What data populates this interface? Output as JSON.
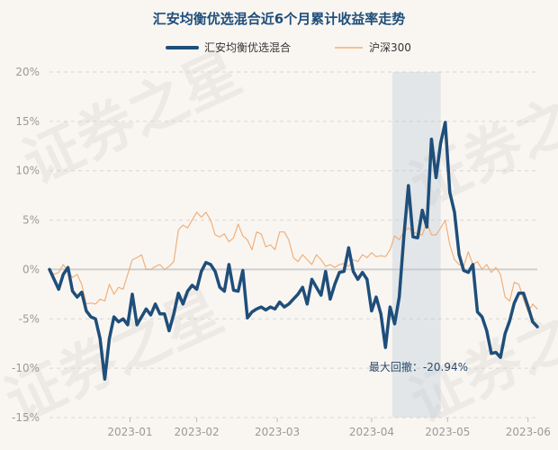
{
  "chart_data": {
    "type": "line",
    "title": "汇安均衡优选混合近6个月累计收益率走势",
    "xlabel": "",
    "ylabel": "",
    "ylim": [
      -15,
      20
    ],
    "yticks": [
      "20%",
      "15%",
      "10%",
      "5%",
      "0%",
      "-5%",
      "-10%",
      "-15%"
    ],
    "ytick_values": [
      20,
      15,
      10,
      5,
      0,
      -5,
      -10,
      -15
    ],
    "xticks": [
      "2023-01",
      "2023-02",
      "2023-03",
      "2023-04",
      "2023-05",
      "2023-06"
    ],
    "xtick_positions": [
      17.5,
      32,
      49.5,
      70,
      86.5,
      104
    ],
    "xlim": [
      0,
      106
    ],
    "grid": true,
    "legend_position": "top-center",
    "series": [
      {
        "name": "汇安均衡优选混合",
        "color": "#1f4e7a",
        "x": [
          0,
          1,
          2,
          3,
          4,
          5,
          6,
          7,
          8,
          9,
          10,
          11,
          12,
          13,
          14,
          15,
          16,
          17,
          18,
          19,
          20,
          21,
          22,
          23,
          24,
          25,
          26,
          27,
          28,
          29,
          30,
          31,
          32,
          33,
          34,
          35,
          36,
          37,
          38,
          39,
          40,
          41,
          42,
          43,
          44,
          45,
          46,
          47,
          48,
          49,
          50,
          51,
          52,
          53,
          54,
          55,
          56,
          57,
          58,
          59,
          60,
          61,
          62,
          63,
          64,
          65,
          66,
          67,
          68,
          69,
          70,
          71,
          72,
          73,
          74,
          75,
          76,
          77,
          78,
          79,
          80,
          81,
          82,
          83,
          84,
          85,
          86,
          87,
          88,
          89,
          90,
          91,
          92,
          93,
          94,
          95,
          96,
          97,
          98,
          99,
          100,
          101,
          102,
          103,
          104,
          105,
          106
        ],
        "values": [
          0.0,
          -1.0,
          -2.0,
          -0.5,
          0.2,
          -2.2,
          -2.8,
          -2.3,
          -4.2,
          -4.8,
          -5.0,
          -7.0,
          -11.1,
          -7.0,
          -4.8,
          -5.3,
          -5.0,
          -5.6,
          -2.5,
          -5.6,
          -4.8,
          -4.0,
          -4.6,
          -3.5,
          -4.5,
          -4.5,
          -6.2,
          -4.5,
          -2.4,
          -3.5,
          -2.2,
          -1.6,
          -2.0,
          -0.2,
          0.7,
          0.5,
          -0.2,
          -1.8,
          -2.2,
          0.5,
          -2.1,
          -2.2,
          -0.1,
          -4.9,
          -4.3,
          -4.0,
          -3.8,
          -4.1,
          -3.8,
          -4.0,
          -3.3,
          -3.8,
          -3.5,
          -3.0,
          -2.5,
          -1.8,
          -3.5,
          -1.0,
          -1.8,
          -2.6,
          -0.2,
          -3.0,
          -1.5,
          -0.3,
          -0.2,
          2.2,
          -0.2,
          -1.0,
          -0.3,
          -1.0,
          -4.2,
          -2.8,
          -4.5,
          -7.9,
          -3.8,
          -5.5,
          -2.8,
          3.3,
          8.5,
          3.3,
          3.2,
          6.0,
          4.3,
          13.2,
          9.3,
          12.8,
          14.9,
          7.8,
          5.8,
          1.5,
          -0.1,
          -0.3,
          0.5,
          -4.3,
          -4.8,
          -6.2,
          -8.5,
          -8.4,
          -8.9,
          -6.5,
          -5.2,
          -3.4,
          -2.4,
          -2.4,
          -3.8,
          -5.3,
          -5.8
        ]
      },
      {
        "name": "沪深300",
        "color": "#f0b07a",
        "x": [
          0,
          1,
          2,
          3,
          4,
          5,
          6,
          7,
          8,
          9,
          10,
          11,
          12,
          13,
          14,
          15,
          16,
          17,
          18,
          19,
          20,
          21,
          22,
          23,
          24,
          25,
          26,
          27,
          28,
          29,
          30,
          31,
          32,
          33,
          34,
          35,
          36,
          37,
          38,
          39,
          40,
          41,
          42,
          43,
          44,
          45,
          46,
          47,
          48,
          49,
          50,
          51,
          52,
          53,
          54,
          55,
          56,
          57,
          58,
          59,
          60,
          61,
          62,
          63,
          64,
          65,
          66,
          67,
          68,
          69,
          70,
          71,
          72,
          73,
          74,
          75,
          76,
          77,
          78,
          79,
          80,
          81,
          82,
          83,
          84,
          85,
          86,
          87,
          88,
          89,
          90,
          91,
          92,
          93,
          94,
          95,
          96,
          97,
          98,
          99,
          100,
          101,
          102,
          103,
          104,
          105,
          106
        ],
        "values": [
          0.0,
          -0.5,
          -0.3,
          0.5,
          -0.2,
          -0.8,
          -0.5,
          -1.5,
          -3.5,
          -3.4,
          -3.5,
          -3.0,
          -3.2,
          -1.5,
          -2.5,
          -1.8,
          -2.0,
          -0.5,
          1.0,
          1.2,
          1.5,
          0.0,
          0.0,
          0.3,
          0.5,
          0.0,
          0.3,
          0.8,
          4.0,
          4.5,
          4.2,
          5.0,
          5.8,
          5.3,
          5.8,
          5.0,
          3.5,
          3.3,
          3.6,
          2.8,
          3.2,
          4.6,
          3.4,
          3.0,
          2.0,
          3.8,
          3.6,
          2.3,
          2.5,
          2.0,
          3.8,
          3.8,
          3.0,
          1.2,
          0.8,
          1.5,
          1.0,
          0.5,
          1.5,
          1.0,
          0.3,
          0.5,
          0.2,
          0.5,
          0.6,
          0.3,
          1.0,
          0.8,
          1.5,
          1.2,
          1.7,
          1.3,
          1.4,
          1.3,
          2.0,
          3.4,
          3.0,
          3.8,
          4.2,
          3.8,
          3.6,
          3.5,
          4.8,
          3.5,
          3.5,
          4.2,
          5.0,
          2.5,
          1.0,
          0.5,
          0.3,
          1.8,
          0.5,
          0.8,
          0.0,
          0.5,
          -0.3,
          0.2,
          -0.5,
          -2.8,
          -3.2,
          -1.3,
          -1.5,
          -3.0,
          -4.3,
          -3.5,
          -4.0
        ]
      }
    ],
    "annotations": [
      {
        "text": "最大回撤：-20.94%",
        "shaded_x_range": [
          74.5,
          85
        ]
      }
    ],
    "watermark": "证券之星"
  }
}
